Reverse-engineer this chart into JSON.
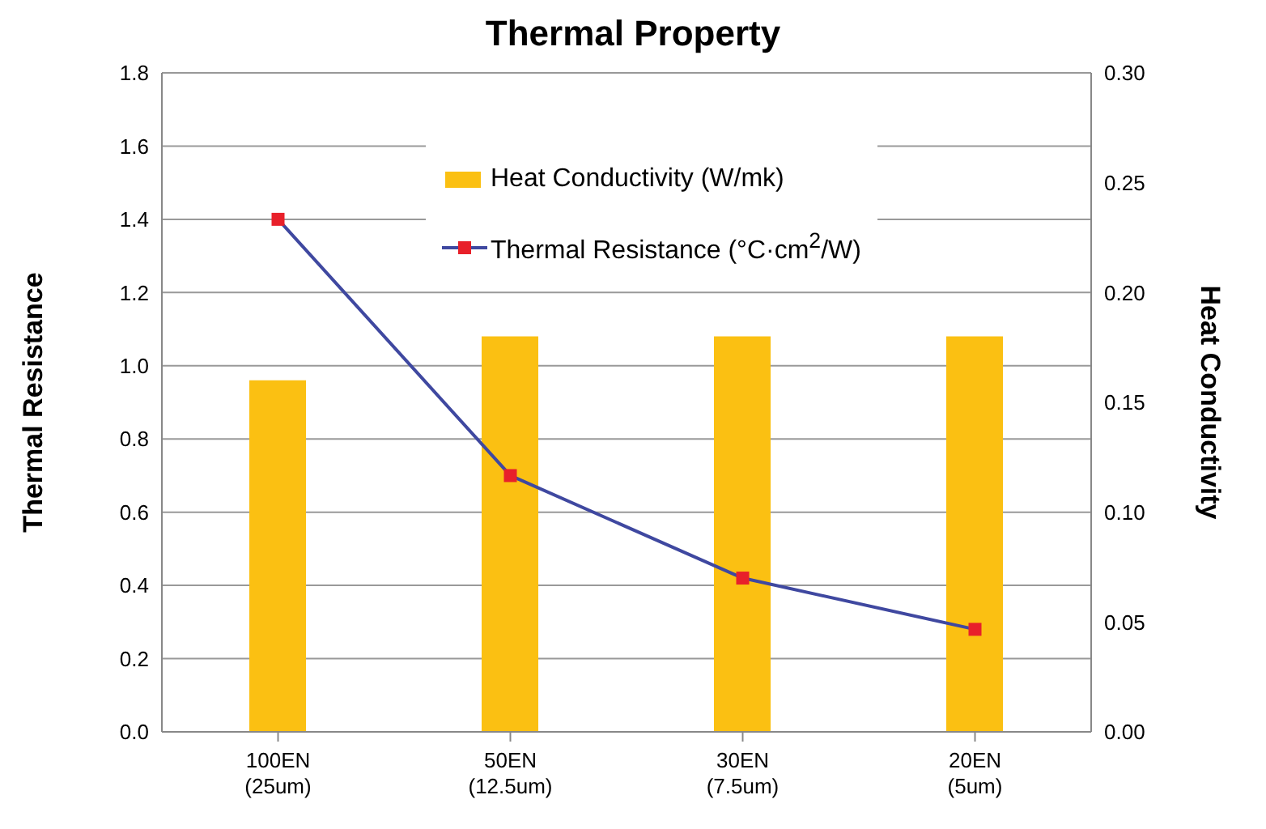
{
  "chart_data": {
    "type": "bar",
    "title": "Thermal Property",
    "ylabel": "Thermal Resistance",
    "y2label": "Heat Conductivity",
    "categories": [
      "100EN\n(25um)",
      "50EN\n(12.5um)",
      "30EN\n(7.5um)",
      "20EN\n(5um)"
    ],
    "series": [
      {
        "name": "Heat Conductivity (W/mk)",
        "axis": "y2",
        "color": "#fbc012",
        "values": [
          0.16,
          0.18,
          0.18,
          0.18
        ]
      },
      {
        "name": "Thermal Resistance (°C·cm$^{2}$/W)",
        "type": "line",
        "axis": "y",
        "color": "#3f48a0",
        "marker": "square",
        "values": [
          1.4,
          0.7,
          0.42,
          0.28
        ]
      }
    ],
    "ylim": [
      0,
      1.8
    ],
    "yticks": [
      {
        "value": 0,
        "label": "0.0"
      },
      {
        "value": 0.2,
        "label": "0.2"
      },
      {
        "value": 0.4,
        "label": "0.4"
      },
      {
        "value": 0.6,
        "label": "0.6"
      },
      {
        "value": 0.8,
        "label": "0.8"
      },
      {
        "value": 1,
        "label": "1.0"
      },
      {
        "value": 1.2,
        "label": "1.2"
      },
      {
        "value": 1.4,
        "label": "1.4"
      },
      {
        "value": 1.6,
        "label": "1.6"
      },
      {
        "value": 1.8,
        "label": "1.8"
      }
    ],
    "y2lim": [
      0,
      0.3
    ],
    "y2ticks": [
      {
        "value": 0,
        "label": "0.00"
      },
      {
        "value": 0.05,
        "label": "0.05"
      },
      {
        "value": 0.1,
        "label": "0.10"
      },
      {
        "value": 0.15,
        "label": "0.15"
      },
      {
        "value": 0.2,
        "label": "0.20"
      },
      {
        "value": 0.25,
        "label": "0.25"
      },
      {
        "value": 0.3,
        "label": "0.30"
      }
    ],
    "grid": "y",
    "legend": "top"
  }
}
